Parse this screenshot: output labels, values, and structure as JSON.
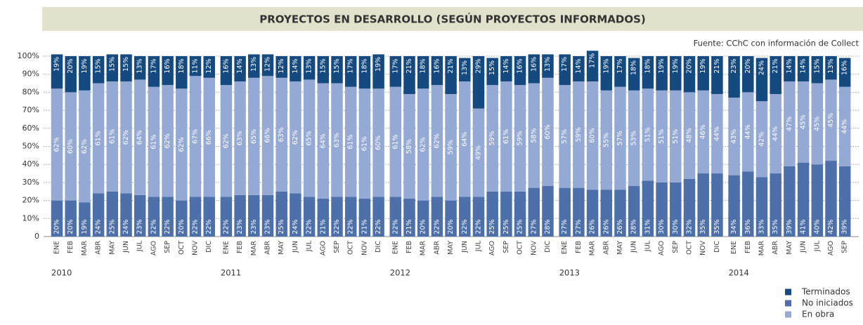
{
  "chart_data": {
    "type": "stacked_bar",
    "title": "PROYECTOS EN DESARROLLO (SEGÚN PROYECTOS INFORMADOS)",
    "source": "Fuente: CChC con información de Collect",
    "groups": [
      {
        "name": "2010",
        "categories": [
          "ENE",
          "FEB",
          "MAR",
          "ABR",
          "MAY",
          "JUN",
          "JUL",
          "AGO",
          "SEP",
          "OCT",
          "NOV",
          "DIC"
        ]
      },
      {
        "name": "2011",
        "categories": [
          "ENE",
          "FEB",
          "MAR",
          "ABR",
          "MAY",
          "JUN",
          "JUL",
          "AGO",
          "SEP",
          "OCT",
          "NOV",
          "DIC"
        ]
      },
      {
        "name": "2012",
        "categories": [
          "ENE",
          "FEB",
          "MAR",
          "ABR",
          "MAY",
          "JUN",
          "JUL",
          "AGO",
          "SEP",
          "OCT",
          "NOV",
          "DIC"
        ]
      },
      {
        "name": "2013",
        "categories": [
          "ENE",
          "FEB",
          "MAR",
          "ABR",
          "MAY",
          "JUN",
          "JUL",
          "AGO",
          "SEP",
          "OCT",
          "NOV",
          "DIC"
        ]
      },
      {
        "name": "2014",
        "categories": [
          "ENE",
          "FEB",
          "MAR",
          "ABR",
          "MAY",
          "JUN",
          "JUL",
          "AGO",
          "SEP"
        ]
      }
    ],
    "series": [
      {
        "name": "No iniciados",
        "color": "#4d70ab",
        "values": [
          20,
          20,
          19,
          24,
          25,
          24,
          23,
          22,
          22,
          20,
          22,
          22,
          22,
          23,
          23,
          23,
          25,
          24,
          22,
          21,
          22,
          22,
          21,
          22,
          22,
          21,
          20,
          22,
          20,
          22,
          22,
          25,
          25,
          25,
          27,
          28,
          27,
          27,
          26,
          26,
          26,
          28,
          31,
          30,
          30,
          32,
          35,
          35,
          34,
          36,
          33,
          35,
          39,
          41,
          40,
          42,
          39
        ],
        "value_labels": [
          "20%",
          "20%",
          "19%",
          "24%",
          "25%",
          "24%",
          "23%",
          "22%",
          "22%",
          "20%",
          "22%",
          "22%",
          "22%",
          "23%",
          "23%",
          "23%",
          "25%",
          "24%",
          "22%",
          "21%",
          "22%",
          "22%",
          "21%",
          "22%",
          "22%",
          "21%",
          "20%",
          "22%",
          "20%",
          "22%",
          "22%",
          "25%",
          "25%",
          "25%",
          "27%",
          "28%",
          "27%",
          "27%",
          "26%",
          "26%",
          "26%",
          "28%",
          "31%",
          "30%",
          "30%",
          "32%",
          "35%",
          "35%",
          "34%",
          "36%",
          "33%",
          "35%",
          "39%",
          "41%",
          "40%",
          "42%",
          "39%"
        ]
      },
      {
        "name": "En obra",
        "color": "#95a9d5",
        "values": [
          62,
          60,
          62,
          61,
          61,
          62,
          64,
          61,
          62,
          62,
          67,
          66,
          62,
          63,
          65,
          66,
          63,
          62,
          65,
          64,
          63,
          61,
          61,
          60,
          61,
          58,
          62,
          62,
          59,
          64,
          49,
          59,
          61,
          59,
          58,
          60,
          57,
          59,
          60,
          55,
          57,
          53,
          51,
          51,
          51,
          48,
          46,
          44,
          43,
          44,
          42,
          44,
          47,
          45,
          45,
          45,
          44
        ],
        "value_labels": [
          "62%",
          "60%",
          "62%",
          "61%",
          "61%",
          "62%",
          "64%",
          "61%",
          "62%",
          "62%",
          "67%",
          "66%",
          "62%",
          "63%",
          "65%",
          "66%",
          "63%",
          "62%",
          "65%",
          "64%",
          "63%",
          "61%",
          "61%",
          "60%",
          "61%",
          "58%",
          "62%",
          "62%",
          "59%",
          "64%",
          "49%",
          "59%",
          "61%",
          "59%",
          "58%",
          "60%",
          "57%",
          "59%",
          "60%",
          "55%",
          "57%",
          "53%",
          "51%",
          "51%",
          "51%",
          "48%",
          "46%",
          "44%",
          "43%",
          "44%",
          "42%",
          "44%",
          "47%",
          "45%",
          "45%",
          "45%",
          "44%"
        ]
      },
      {
        "name": "Terminados",
        "color": "#144a80",
        "values": [
          19,
          20,
          19,
          15,
          15,
          15,
          13,
          17,
          16,
          18,
          11,
          12,
          16,
          14,
          13,
          12,
          12,
          14,
          13,
          15,
          15,
          17,
          18,
          19,
          17,
          21,
          18,
          16,
          21,
          13,
          29,
          15,
          14,
          16,
          16,
          13,
          17,
          14,
          17,
          19,
          17,
          18,
          18,
          19,
          19,
          20,
          19,
          21,
          23,
          20,
          24,
          21,
          14,
          14,
          15,
          13,
          16
        ],
        "value_labels": [
          "19%",
          "20%",
          "19%",
          "15%",
          "15%",
          "15%",
          "13%",
          "17%",
          "16%",
          "18%",
          "11%",
          "12%",
          "16%",
          "14%",
          "13%",
          "12%",
          "12%",
          "14%",
          "13%",
          "15%",
          "15%",
          "17%",
          "18%",
          "19%",
          "17%",
          "21%",
          "18%",
          "16%",
          "21%",
          "13%",
          "29%",
          "15%",
          "14%",
          "16%",
          "16%",
          "13%",
          "17%",
          "14%",
          "17%",
          "19%",
          "17%",
          "18%",
          "18%",
          "19%",
          "19%",
          "20%",
          "19%",
          "21%",
          "23%",
          "20%",
          "24%",
          "21%",
          "14%",
          "14%",
          "15%",
          "13%",
          "16%"
        ]
      }
    ],
    "ylim": [
      0,
      100
    ],
    "yticks": [
      {
        "value": 0,
        "label": "0"
      },
      {
        "value": 10,
        "label": "10%"
      },
      {
        "value": 20,
        "label": "20%"
      },
      {
        "value": 30,
        "label": "30%"
      },
      {
        "value": 40,
        "label": "40%"
      },
      {
        "value": 50,
        "label": "50%"
      },
      {
        "value": 60,
        "label": "60%"
      },
      {
        "value": 70,
        "label": "70%"
      },
      {
        "value": 80,
        "label": "80%"
      },
      {
        "value": 90,
        "label": "90%"
      },
      {
        "value": 100,
        "label": "100%"
      }
    ],
    "grid": true,
    "legend": "bottom-right",
    "legend_order": [
      2,
      0,
      1
    ]
  }
}
